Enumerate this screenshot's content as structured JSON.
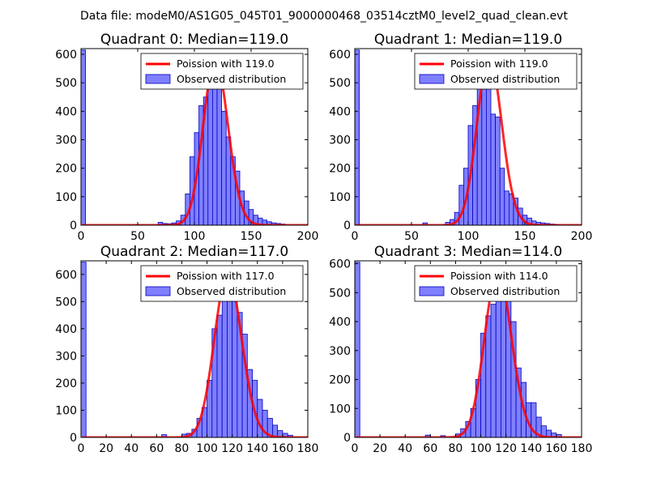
{
  "suptitle": "Data file: modeM0/AS1G05_045T01_9000000468_03514cztM0_level2_quad_clean.evt",
  "colors": {
    "hist_fill": "#7f7fff",
    "hist_edge": "#0000bf",
    "poisson": "#ff0000"
  },
  "chart_data": [
    {
      "type": "bar",
      "title": "Quadrant 0: Median=119.0",
      "median": 119.0,
      "xlim": [
        0,
        200
      ],
      "ylim": [
        0,
        620
      ],
      "xticks": [
        0,
        50,
        100,
        150,
        200
      ],
      "yticks": [
        0,
        100,
        200,
        300,
        400,
        500,
        600
      ],
      "bin_width": 4,
      "bins_start": [
        0,
        68,
        72,
        76,
        80,
        84,
        88,
        92,
        96,
        100,
        104,
        108,
        112,
        116,
        120,
        124,
        128,
        132,
        136,
        140,
        144,
        148,
        152,
        156,
        160,
        164,
        168,
        172,
        176
      ],
      "counts": [
        615,
        10,
        6,
        5,
        8,
        15,
        35,
        110,
        240,
        325,
        420,
        450,
        530,
        580,
        510,
        400,
        310,
        240,
        190,
        120,
        85,
        55,
        35,
        25,
        18,
        12,
        8,
        6,
        4
      ],
      "legend": [
        "Poission with 119.0",
        "Observed distribution"
      ]
    },
    {
      "type": "bar",
      "title": "Quadrant 1: Median=119.0",
      "median": 119.0,
      "xlim": [
        0,
        200
      ],
      "ylim": [
        0,
        620
      ],
      "xticks": [
        0,
        50,
        100,
        150,
        200
      ],
      "yticks": [
        0,
        100,
        200,
        300,
        400,
        500,
        600
      ],
      "bin_width": 4,
      "bins_start": [
        0,
        60,
        80,
        84,
        88,
        92,
        96,
        100,
        104,
        108,
        112,
        116,
        120,
        124,
        128,
        132,
        136,
        140,
        144,
        148,
        152,
        156,
        160,
        164,
        168,
        172,
        176
      ],
      "counts": [
        615,
        8,
        10,
        20,
        45,
        140,
        200,
        350,
        420,
        550,
        590,
        480,
        390,
        380,
        200,
        120,
        110,
        95,
        60,
        35,
        25,
        15,
        10,
        8,
        6,
        4,
        2
      ],
      "legend": [
        "Poission with 119.0",
        "Observed distribution"
      ]
    },
    {
      "type": "bar",
      "title": "Quadrant 2: Median=117.0",
      "median": 117.0,
      "xlim": [
        0,
        180
      ],
      "ylim": [
        0,
        650
      ],
      "xticks": [
        0,
        20,
        40,
        60,
        80,
        100,
        120,
        140,
        160,
        180
      ],
      "yticks": [
        0,
        100,
        200,
        300,
        400,
        500,
        600
      ],
      "bin_width": 4,
      "bins_start": [
        0,
        64,
        80,
        84,
        88,
        92,
        96,
        100,
        104,
        108,
        112,
        116,
        120,
        124,
        128,
        132,
        136,
        140,
        144,
        148,
        152,
        156,
        160,
        164
      ],
      "counts": [
        645,
        10,
        12,
        15,
        30,
        70,
        110,
        210,
        400,
        450,
        580,
        600,
        530,
        460,
        380,
        250,
        210,
        140,
        100,
        70,
        45,
        25,
        15,
        8
      ],
      "legend": [
        "Poission with 117.0",
        "Observed distribution"
      ]
    },
    {
      "type": "bar",
      "title": "Quadrant 3: Median=114.0",
      "median": 114.0,
      "xlim": [
        0,
        180
      ],
      "ylim": [
        0,
        610
      ],
      "xticks": [
        0,
        20,
        40,
        60,
        80,
        100,
        120,
        140,
        160,
        180
      ],
      "yticks": [
        0,
        100,
        200,
        300,
        400,
        500,
        600
      ],
      "bin_width": 4,
      "bins_start": [
        0,
        56,
        68,
        80,
        84,
        88,
        92,
        96,
        100,
        104,
        108,
        112,
        116,
        120,
        124,
        128,
        132,
        136,
        140,
        144,
        148,
        152,
        156,
        160
      ],
      "counts": [
        605,
        8,
        6,
        12,
        30,
        55,
        100,
        200,
        360,
        420,
        460,
        570,
        500,
        480,
        400,
        240,
        190,
        120,
        120,
        70,
        40,
        25,
        15,
        10
      ],
      "legend": [
        "Poission with 114.0",
        "Observed distribution"
      ]
    }
  ]
}
